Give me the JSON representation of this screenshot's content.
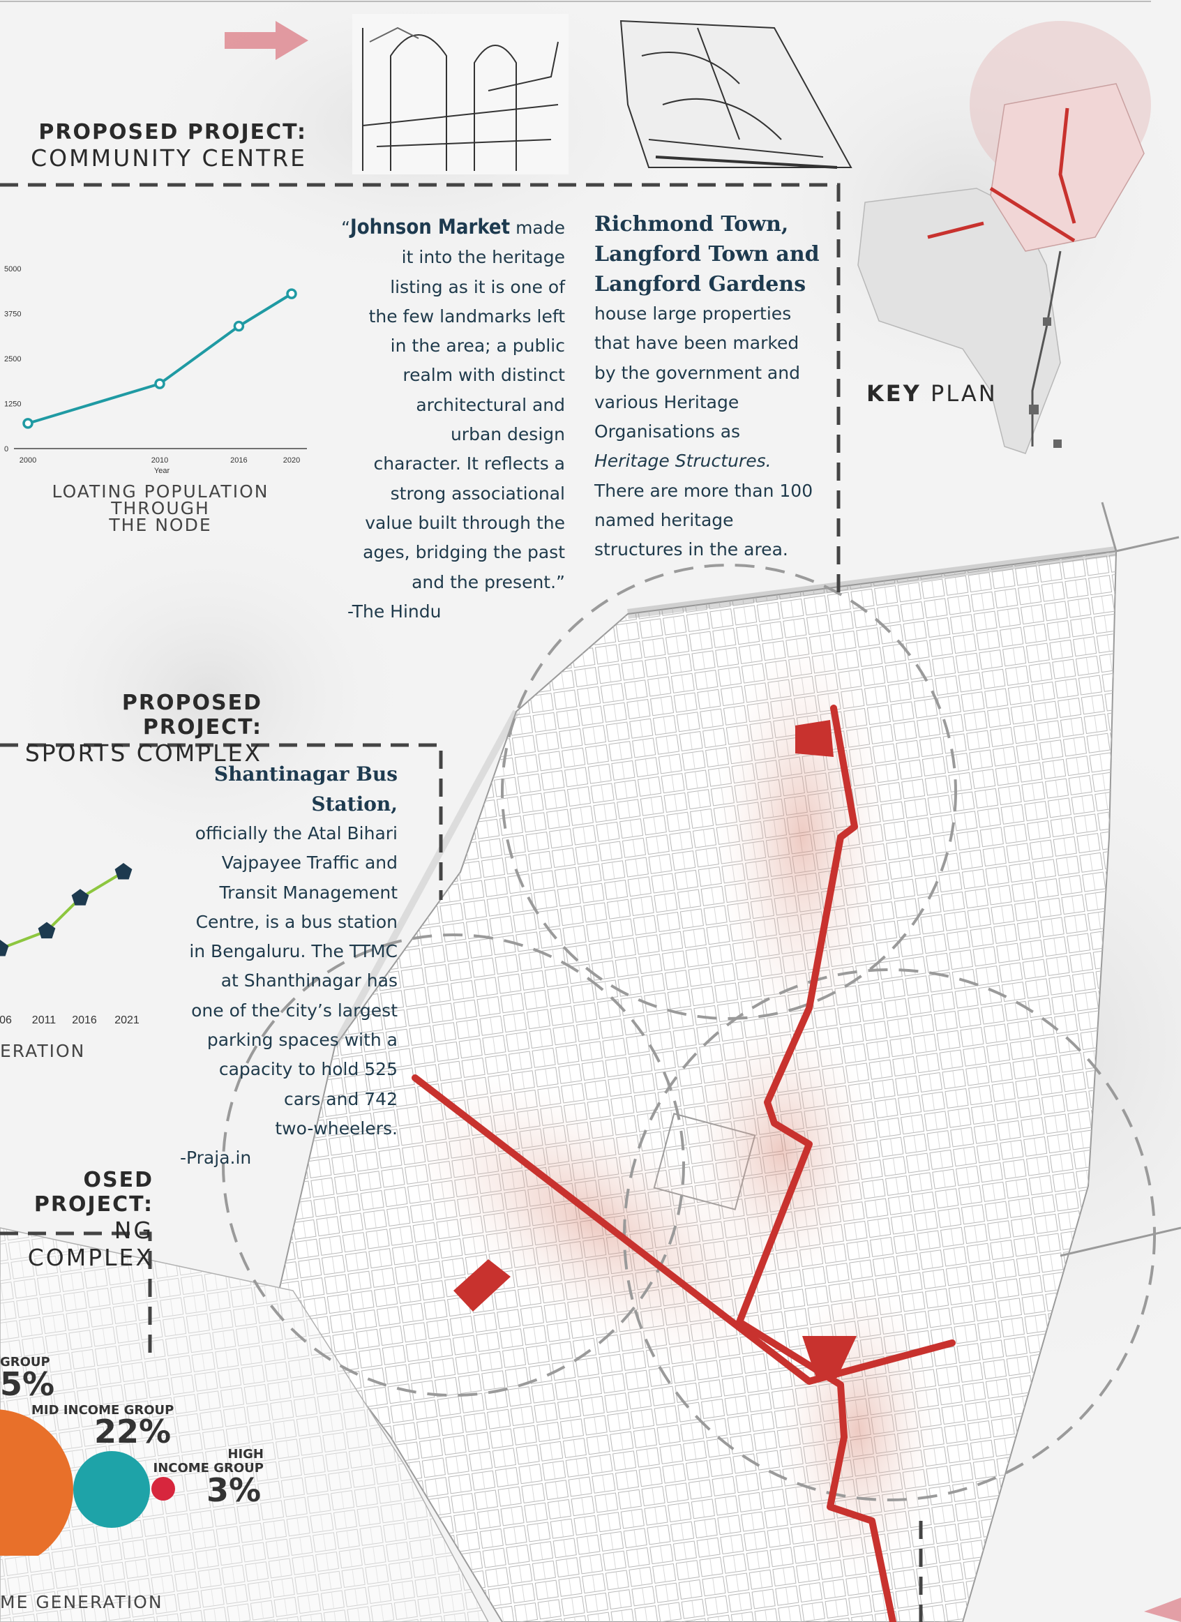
{
  "projects": {
    "community": {
      "kicker": "PROPOSED PROJECT:",
      "name": "COMMUNITY CENTRE"
    },
    "sports": {
      "kicker": "PROPOSED PROJECT:",
      "name": "SPORTS COMPLEX"
    },
    "third": {
      "kicker": "OSED PROJECT:",
      "name": "NG COMPLEX"
    }
  },
  "quote_johnson": {
    "title": "Johnson Market",
    "open_mark": "“",
    "lines_first": "made",
    "lines": [
      "it into the heritage",
      "listing as it is one of",
      "the few landmarks left",
      "in the area; a public",
      "realm with distinct",
      "architectural and",
      "urban design",
      "character. It reflects a",
      "strong associational",
      "value built through the",
      "ages, bridging the past",
      "and the present.”"
    ],
    "source": "-The Hindu"
  },
  "richmond": {
    "heading_lines": [
      "Richmond Town,",
      "Langford Town and",
      "Langford Gardens"
    ],
    "lines": [
      "house large properties",
      "that have been marked",
      "by the government and",
      "various Heritage",
      "Organisations as"
    ],
    "italic_line": "Heritage Structures.",
    "lines_after": [
      "There are more than 100",
      "named heritage",
      "structures in  the area."
    ]
  },
  "shantinagar": {
    "title": "Shantinagar Bus Station,",
    "lines": [
      "officially the Atal Bihari",
      "Vajpayee Traffic and",
      "Transit Management",
      "Centre, is a bus station",
      "in Bengaluru. The TTMC",
      "at Shanthinagar  has",
      "one of the city’s largest",
      "parking spaces with a",
      "capacity to hold 525",
      "cars and 742",
      "two-wheelers."
    ],
    "source": "-Praja.in"
  },
  "key_plan": {
    "bold": "KEY",
    "rest": "PLAN"
  },
  "captions": {
    "population": [
      "LOATING POPULATION THROUGH",
      "THE NODE"
    ],
    "generation": "ERATION",
    "income": "ME GENERATION"
  },
  "chart_data": [
    {
      "type": "line",
      "title": "",
      "xlabel": "Year",
      "ylabel": "",
      "x": [
        2000,
        2010,
        2016,
        2020
      ],
      "y": [
        700,
        1800,
        3400,
        4300
      ],
      "y_ticks": [
        0,
        1250,
        2500,
        3750,
        5000
      ],
      "x_ticks": [
        "2000",
        "2010",
        "2016",
        "2020"
      ],
      "ylim": [
        0,
        5000
      ],
      "color": "#1f9aa3",
      "caption": "LOATING POPULATION THROUGH THE NODE"
    },
    {
      "type": "line",
      "x_ticks": [
        "06",
        "2011",
        "2016",
        "2021"
      ],
      "y": [
        0.35,
        0.5,
        0.78,
        1.0
      ],
      "color": "#8dc63f",
      "marker_color": "#1d3a4f",
      "caption": "ERATION"
    },
    {
      "type": "bubble",
      "items": [
        {
          "label": "GROUP",
          "value": "5%",
          "color": "#e8702a"
        },
        {
          "label": "MID INCOME GROUP",
          "value": "22%",
          "color": "#1ea3a8"
        },
        {
          "label": "HIGH INCOME GROUP",
          "value": "3%",
          "color": "#d7263d"
        }
      ],
      "caption": "ME GENERATION"
    }
  ],
  "colors": {
    "route": "#c8322e",
    "accent_arrow": "#de8a92",
    "dash": "#444444",
    "text_dark": "#1d3a4f"
  }
}
